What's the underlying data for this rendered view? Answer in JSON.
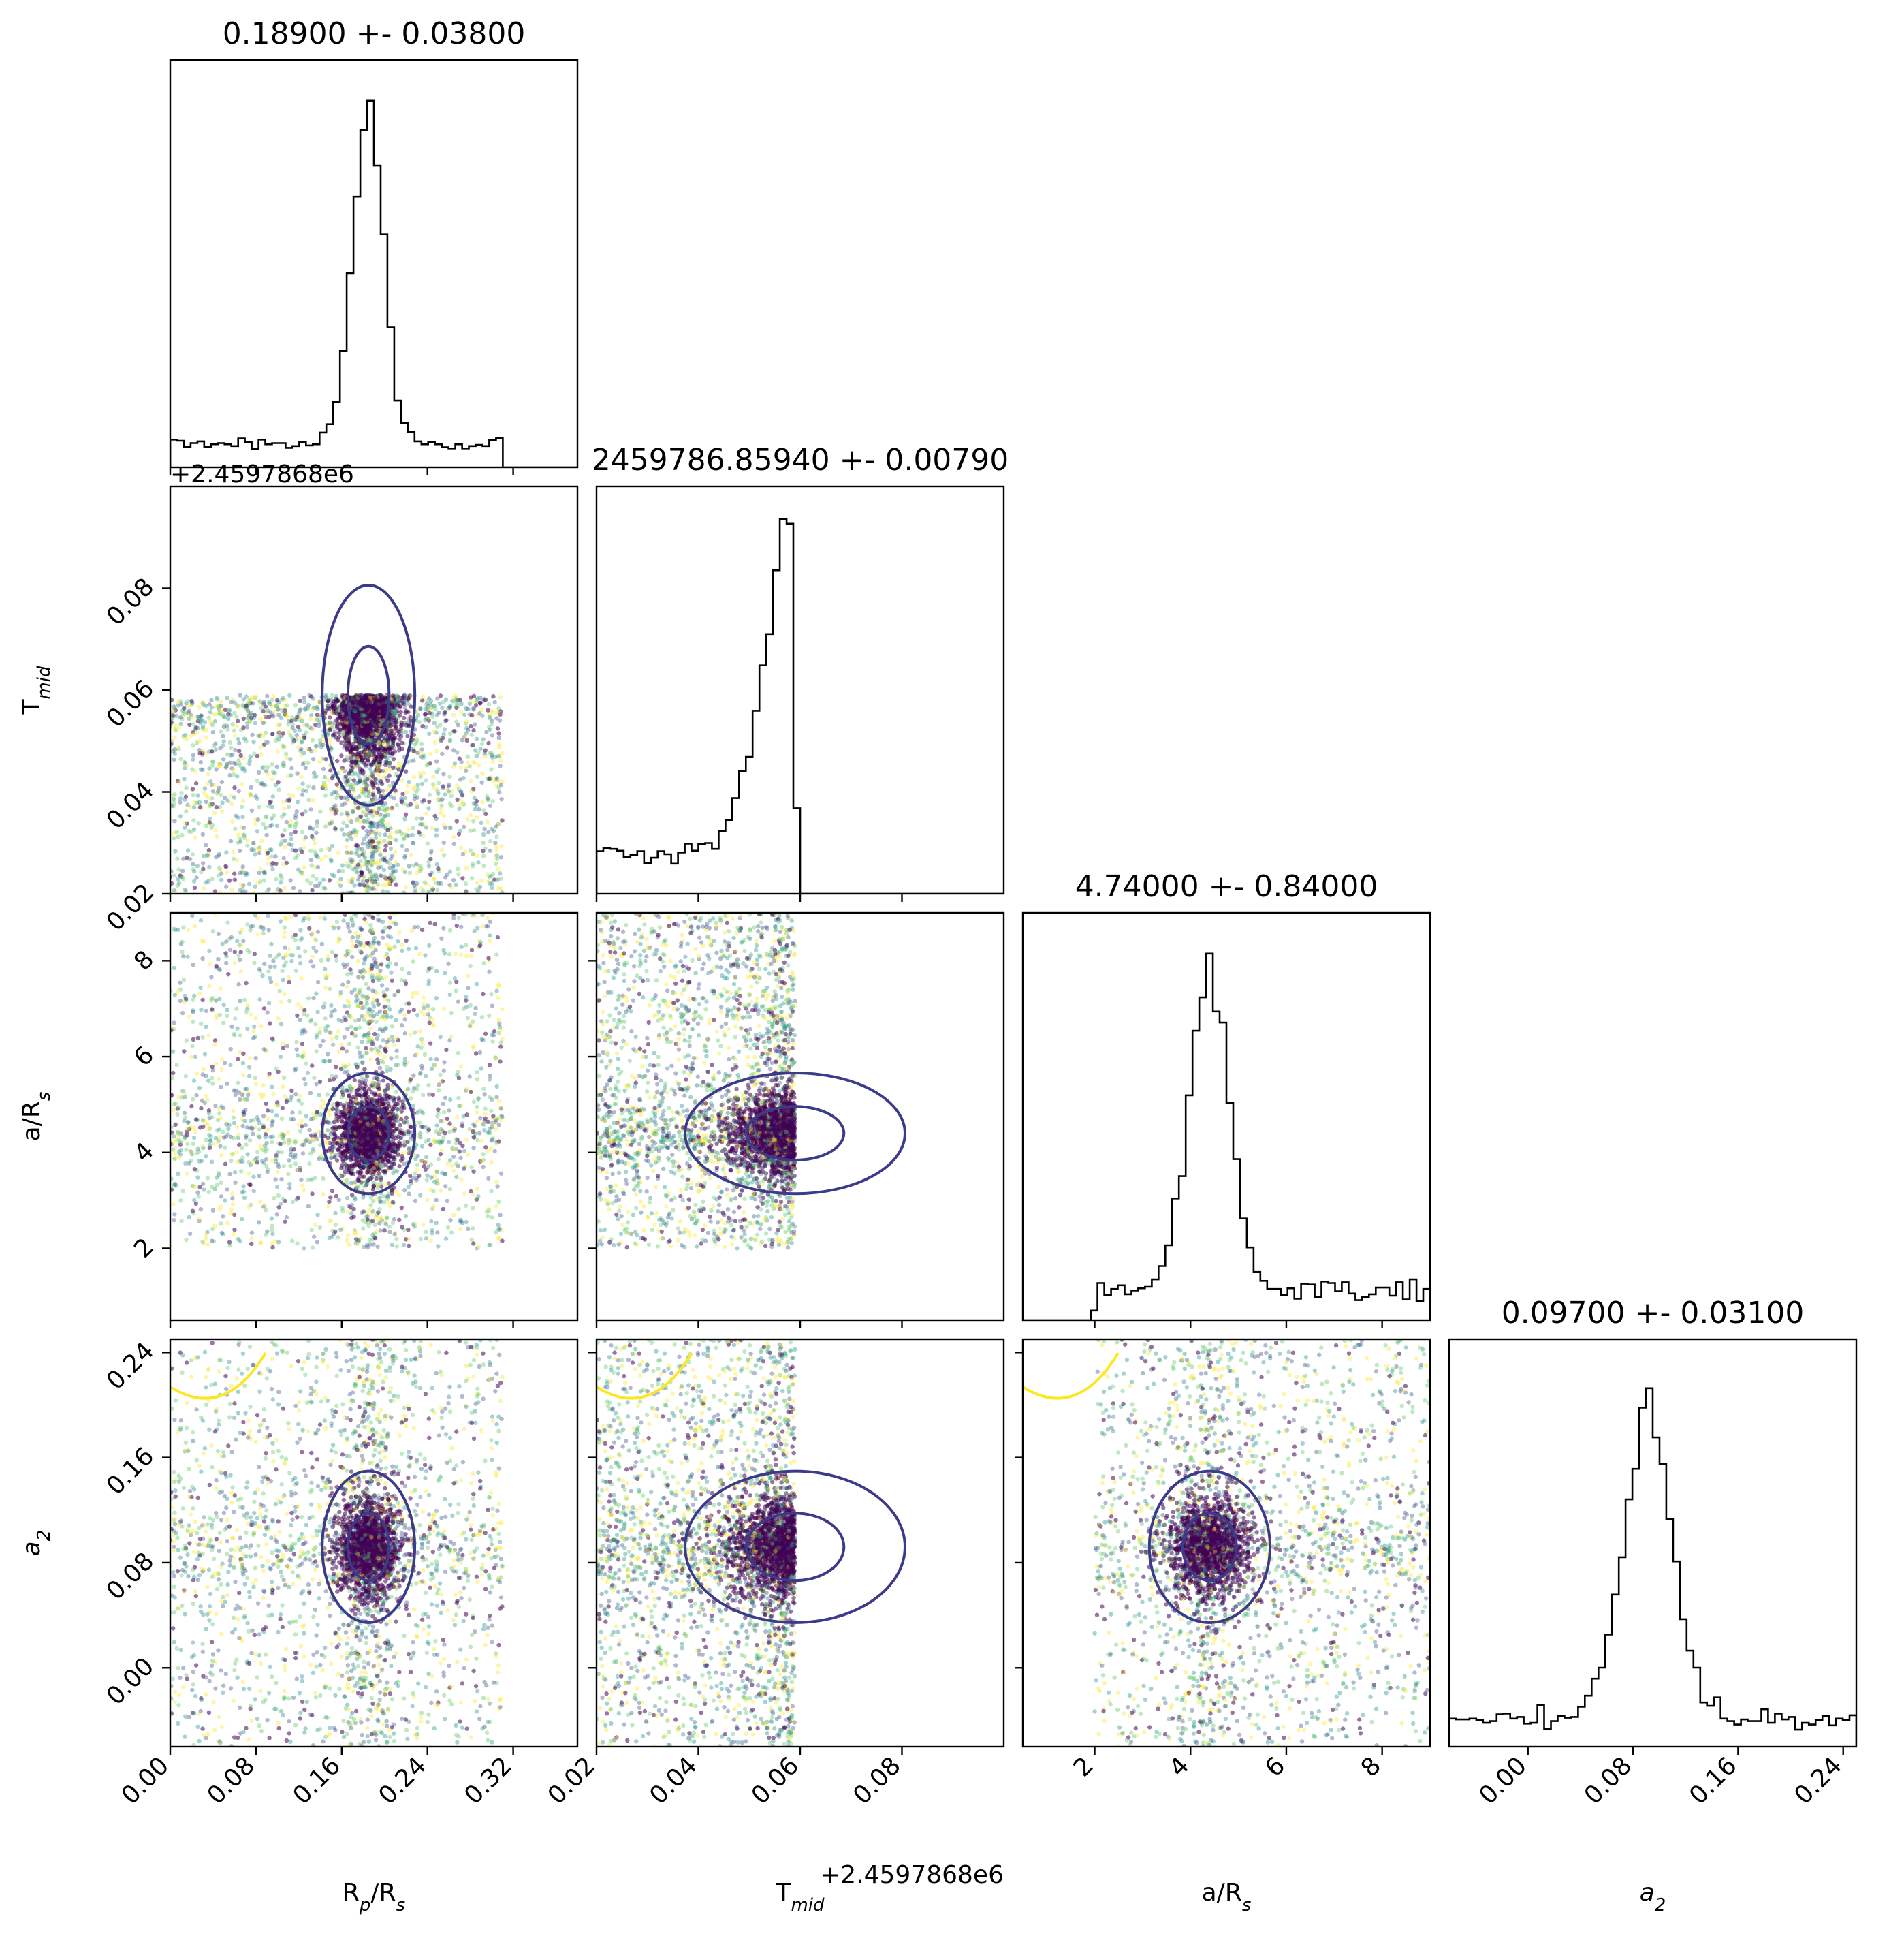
{
  "chart_data": {
    "type": "corner",
    "params": [
      "R_p/R_s",
      "T_mid",
      "a/R_s",
      "a_2"
    ],
    "axis_labels": [
      {
        "main": "R",
        "sub": "p",
        "rest": "/R",
        "sub2": "s"
      },
      {
        "main": "T",
        "sub": "mid",
        "rest": "",
        "sub2": ""
      },
      {
        "main": "a/R",
        "sub": "s",
        "rest": "",
        "sub2": ""
      },
      {
        "main": "a",
        "sub": "2",
        "rest": "",
        "sub2": "",
        "italic": true
      }
    ],
    "titles": [
      "0.18900 +- 0.03800",
      "2459786.85940 +- 0.00790",
      "4.74000 +- 0.84000",
      "0.09700 +- 0.03100"
    ],
    "offset_text": "+2.4597868e6",
    "ranges": [
      [
        0.0,
        0.38
      ],
      [
        0.02,
        0.1
      ],
      [
        0.5,
        9.0
      ],
      [
        -0.06,
        0.25
      ]
    ],
    "ticks": [
      [
        "0.00",
        "0.08",
        "0.16",
        "0.24",
        "0.32"
      ],
      [
        "0.02",
        "0.04",
        "0.06",
        "0.08"
      ],
      [
        "2",
        "4",
        "6",
        "8"
      ],
      [
        "0.00",
        "0.08",
        "0.16",
        "0.24"
      ]
    ],
    "tick_values": [
      [
        0.0,
        0.08,
        0.16,
        0.24,
        0.32
      ],
      [
        0.02,
        0.04,
        0.06,
        0.08
      ],
      [
        2,
        4,
        6,
        8
      ],
      [
        0.0,
        0.08,
        0.16,
        0.24
      ]
    ],
    "sample_bounds": [
      [
        0.0,
        0.31
      ],
      [
        0.02,
        0.059
      ],
      [
        2.0,
        9.0
      ],
      [
        -0.06,
        0.25
      ]
    ],
    "histograms": [
      {
        "param": "R_p/R_s",
        "mode": 0.185,
        "width": 0.012,
        "tail_weight": 0.07,
        "peak_height_frac": 0.9
      },
      {
        "param": "T_mid",
        "mode": 0.059,
        "width": 0.006,
        "tail_weight": 0.08,
        "peak_height_frac": 0.92
      },
      {
        "param": "a/R_s",
        "mode": 4.4,
        "width": 0.35,
        "tail_weight": 0.1,
        "peak_height_frac": 0.9
      },
      {
        "param": "a_2",
        "mode": 0.092,
        "width": 0.016,
        "tail_weight": 0.06,
        "peak_height_frac": 0.88
      }
    ],
    "colormap": [
      "#440154",
      "#3b528b",
      "#21918c",
      "#5ec962",
      "#fde725"
    ],
    "contour_colors": [
      "#3b3b8a",
      "#fde725"
    ],
    "histogram_color": "#000000"
  }
}
